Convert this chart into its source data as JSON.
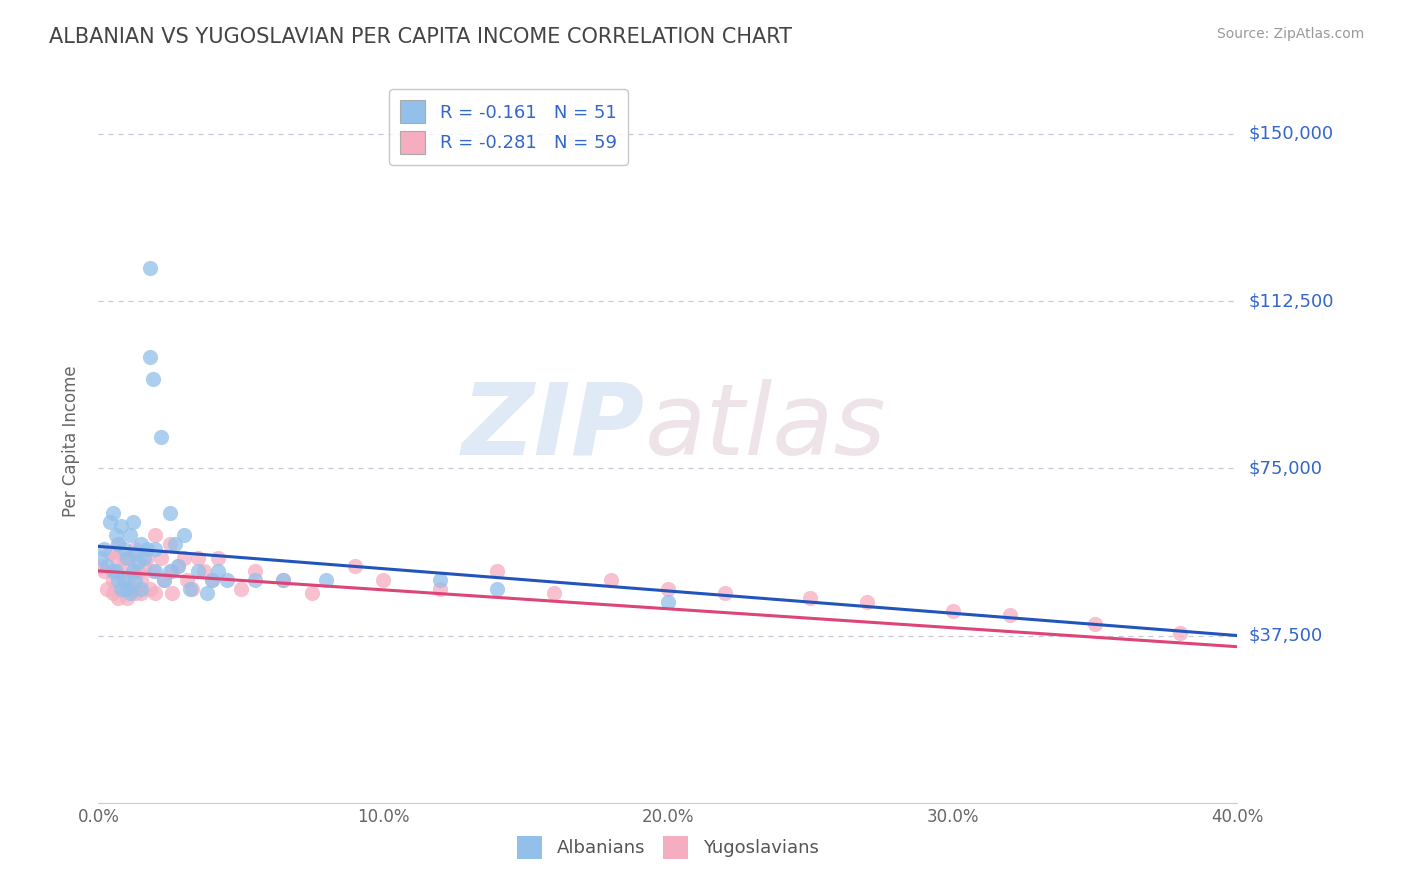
{
  "title": "ALBANIAN VS YUGOSLAVIAN PER CAPITA INCOME CORRELATION CHART",
  "source": "Source: ZipAtlas.com",
  "ylabel": "Per Capita Income",
  "yticks": [
    0,
    37500,
    75000,
    112500,
    150000
  ],
  "ytick_labels": [
    "",
    "$37,500",
    "$75,000",
    "$112,500",
    "$150,000"
  ],
  "xlim": [
    0.0,
    0.4
  ],
  "ylim": [
    0,
    162000
  ],
  "xticks": [
    0.0,
    0.1,
    0.2,
    0.3,
    0.4
  ],
  "xtick_labels": [
    "0.0%",
    "10.0%",
    "20.0%",
    "30.0%",
    "40.0%"
  ],
  "legend_entry_blue": "R = -0.161   N = 51",
  "legend_entry_pink": "R = -0.281   N = 59",
  "legend_labels": [
    "Albanians",
    "Yugoslavians"
  ],
  "albanians_scatter_color": "#92c0ea",
  "yugoslavians_scatter_color": "#f5adc0",
  "albanians_line_color": "#2255bb",
  "yugoslavians_line_color": "#dd4477",
  "grid_color": "#c8c8d8",
  "background_color": "#ffffff",
  "title_color": "#444444",
  "yaxis_label_color": "#3366cc",
  "albanians_x": [
    0.001,
    0.002,
    0.003,
    0.004,
    0.005,
    0.005,
    0.006,
    0.006,
    0.007,
    0.007,
    0.008,
    0.008,
    0.009,
    0.009,
    0.01,
    0.01,
    0.011,
    0.011,
    0.012,
    0.012,
    0.013,
    0.013,
    0.014,
    0.015,
    0.015,
    0.016,
    0.017,
    0.018,
    0.018,
    0.019,
    0.02,
    0.02,
    0.022,
    0.023,
    0.025,
    0.025,
    0.027,
    0.028,
    0.03,
    0.032,
    0.035,
    0.038,
    0.04,
    0.042,
    0.045,
    0.055,
    0.065,
    0.08,
    0.12,
    0.14,
    0.2
  ],
  "albanians_y": [
    55000,
    57000,
    53000,
    63000,
    65000,
    52000,
    60000,
    52000,
    58000,
    50000,
    62000,
    48000,
    57000,
    50000,
    55000,
    48000,
    60000,
    47000,
    52000,
    63000,
    56000,
    50000,
    54000,
    58000,
    48000,
    55000,
    57000,
    120000,
    100000,
    95000,
    57000,
    52000,
    82000,
    50000,
    65000,
    52000,
    58000,
    53000,
    60000,
    48000,
    52000,
    47000,
    50000,
    52000,
    50000,
    50000,
    50000,
    50000,
    50000,
    48000,
    45000
  ],
  "yugoslavians_x": [
    0.001,
    0.002,
    0.003,
    0.004,
    0.005,
    0.005,
    0.006,
    0.007,
    0.007,
    0.008,
    0.009,
    0.009,
    0.01,
    0.01,
    0.011,
    0.011,
    0.012,
    0.013,
    0.013,
    0.014,
    0.015,
    0.015,
    0.016,
    0.017,
    0.018,
    0.019,
    0.02,
    0.02,
    0.022,
    0.023,
    0.025,
    0.026,
    0.026,
    0.028,
    0.03,
    0.031,
    0.033,
    0.035,
    0.037,
    0.04,
    0.042,
    0.05,
    0.055,
    0.065,
    0.075,
    0.09,
    0.1,
    0.12,
    0.14,
    0.16,
    0.18,
    0.2,
    0.22,
    0.25,
    0.27,
    0.3,
    0.32,
    0.35,
    0.38
  ],
  "yugoslavians_y": [
    53000,
    52000,
    48000,
    56000,
    50000,
    47000,
    55000,
    58000,
    46000,
    52000,
    48000,
    55000,
    50000,
    46000,
    55000,
    48000,
    52000,
    57000,
    47000,
    52000,
    50000,
    47000,
    53000,
    55000,
    48000,
    52000,
    60000,
    47000,
    55000,
    50000,
    58000,
    52000,
    47000,
    53000,
    55000,
    50000,
    48000,
    55000,
    52000,
    50000,
    55000,
    48000,
    52000,
    50000,
    47000,
    53000,
    50000,
    48000,
    52000,
    47000,
    50000,
    48000,
    47000,
    46000,
    45000,
    43000,
    42000,
    40000,
    38000
  ],
  "alb_trendline_x": [
    0.0,
    0.4
  ],
  "alb_trendline_y": [
    57500,
    37500
  ],
  "yug_trendline_x": [
    0.0,
    0.4
  ],
  "yug_trendline_y": [
    52000,
    35000
  ]
}
